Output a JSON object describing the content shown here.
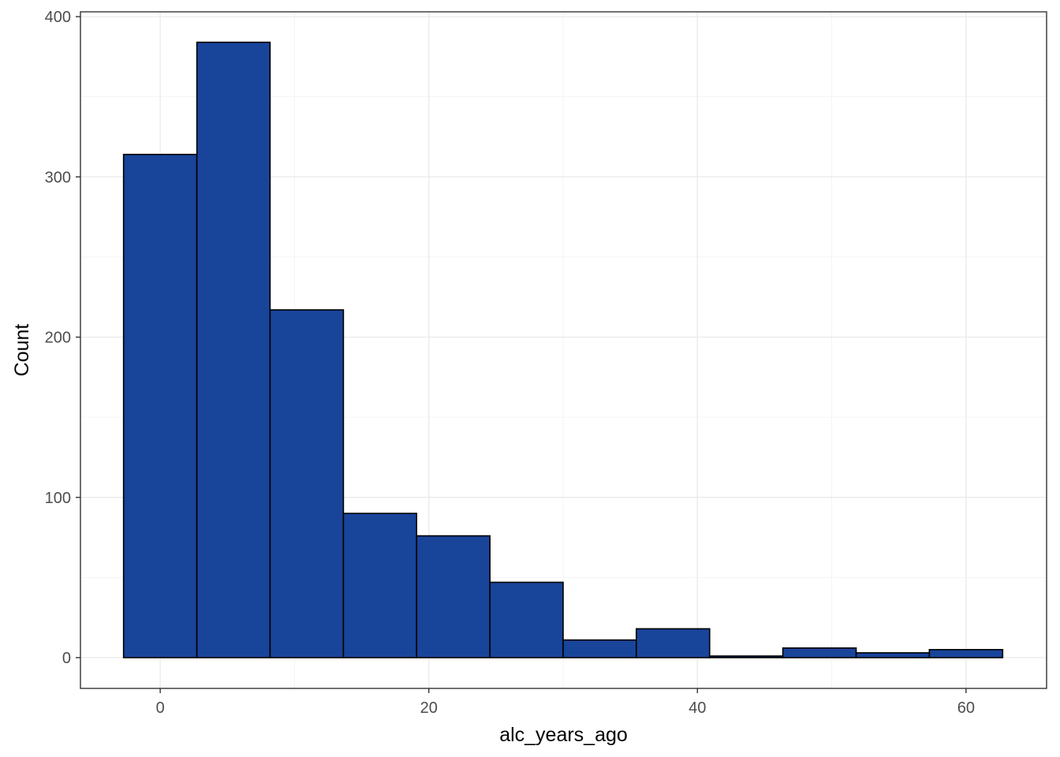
{
  "chart_data": {
    "type": "bar",
    "subtype": "histogram",
    "title": "",
    "xlabel": "alc_years_ago",
    "ylabel": "Count",
    "xlim": [
      -5.94,
      66.0
    ],
    "ylim": [
      -19.2,
      403.0
    ],
    "x_ticks": [
      0,
      20,
      40,
      60
    ],
    "y_ticks": [
      0,
      100,
      200,
      300,
      400
    ],
    "grid": true,
    "theme": "bw",
    "bar_fill": "#18449A",
    "bar_outline": "#000000",
    "bins": [
      {
        "xmin": -2.73,
        "xmax": 2.73,
        "count": 314
      },
      {
        "xmin": 2.73,
        "xmax": 8.18,
        "count": 384
      },
      {
        "xmin": 8.18,
        "xmax": 13.64,
        "count": 217
      },
      {
        "xmin": 13.64,
        "xmax": 19.09,
        "count": 90
      },
      {
        "xmin": 19.09,
        "xmax": 24.55,
        "count": 76
      },
      {
        "xmin": 24.55,
        "xmax": 30.0,
        "count": 47
      },
      {
        "xmin": 30.0,
        "xmax": 35.45,
        "count": 11
      },
      {
        "xmin": 35.45,
        "xmax": 40.91,
        "count": 18
      },
      {
        "xmin": 40.91,
        "xmax": 46.36,
        "count": 1
      },
      {
        "xmin": 46.36,
        "xmax": 51.82,
        "count": 6
      },
      {
        "xmin": 51.82,
        "xmax": 57.27,
        "count": 3
      },
      {
        "xmin": 57.27,
        "xmax": 62.73,
        "count": 5
      }
    ]
  }
}
